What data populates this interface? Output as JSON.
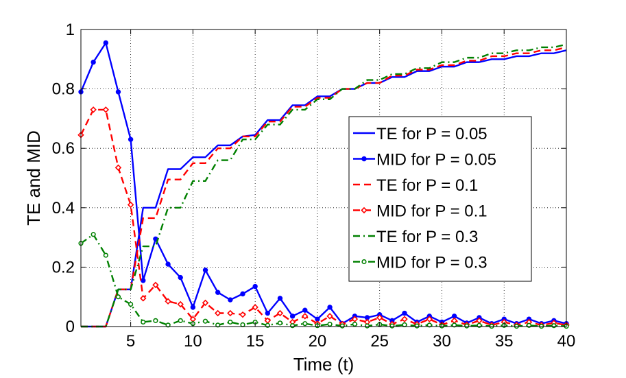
{
  "chart_data": {
    "type": "line",
    "xlabel": "Time (t)",
    "ylabel": "TE and MID",
    "xlim": [
      1,
      40
    ],
    "ylim": [
      0,
      1
    ],
    "xticks": [
      5,
      10,
      15,
      20,
      25,
      30,
      35,
      40
    ],
    "yticks": [
      0,
      0.2,
      0.4,
      0.6,
      0.8,
      1
    ],
    "xtick_labels": [
      "5",
      "10",
      "15",
      "20",
      "25",
      "30",
      "35",
      "40"
    ],
    "ytick_labels": [
      "0",
      "0.2",
      "0.4",
      "0.6",
      "0.8",
      "1"
    ],
    "grid": true,
    "legend_position": "center-right",
    "x": [
      1,
      2,
      3,
      4,
      5,
      6,
      7,
      8,
      9,
      10,
      11,
      12,
      13,
      14,
      15,
      16,
      17,
      18,
      19,
      20,
      21,
      22,
      23,
      24,
      25,
      26,
      27,
      28,
      29,
      30,
      31,
      32,
      33,
      34,
      35,
      36,
      37,
      38,
      39,
      40
    ],
    "series": [
      {
        "name": "TE for P = 0.05",
        "color": "#0000ff",
        "style": "solid",
        "marker": "none",
        "values": [
          0,
          0,
          0,
          0.125,
          0.125,
          0.4,
          0.4,
          0.53,
          0.53,
          0.57,
          0.57,
          0.61,
          0.61,
          0.64,
          0.645,
          0.695,
          0.695,
          0.745,
          0.745,
          0.775,
          0.775,
          0.8,
          0.8,
          0.82,
          0.82,
          0.84,
          0.84,
          0.86,
          0.86,
          0.875,
          0.875,
          0.89,
          0.89,
          0.9,
          0.9,
          0.91,
          0.91,
          0.92,
          0.92,
          0.93
        ]
      },
      {
        "name": "MID for P = 0.05",
        "color": "#0000ff",
        "style": "solid",
        "marker": "dot",
        "values": [
          0.79,
          0.89,
          0.955,
          0.79,
          0.63,
          0.155,
          0.295,
          0.21,
          0.165,
          0.065,
          0.19,
          0.115,
          0.09,
          0.11,
          0.135,
          0.045,
          0.095,
          0.035,
          0.055,
          0.025,
          0.065,
          0.01,
          0.035,
          0.03,
          0.04,
          0.02,
          0.045,
          0.015,
          0.035,
          0.015,
          0.035,
          0.012,
          0.03,
          0.01,
          0.025,
          0.01,
          0.025,
          0.01,
          0.02,
          0.01
        ]
      },
      {
        "name": "TE for P = 0.1",
        "color": "#ff0000",
        "style": "dashed",
        "marker": "none",
        "values": [
          0,
          0,
          0,
          0.125,
          0.125,
          0.365,
          0.365,
          0.495,
          0.495,
          0.55,
          0.55,
          0.6,
          0.6,
          0.64,
          0.64,
          0.69,
          0.69,
          0.74,
          0.74,
          0.77,
          0.77,
          0.8,
          0.8,
          0.82,
          0.82,
          0.845,
          0.845,
          0.865,
          0.865,
          0.88,
          0.88,
          0.895,
          0.895,
          0.91,
          0.91,
          0.92,
          0.92,
          0.93,
          0.93,
          0.94
        ]
      },
      {
        "name": "MID for P = 0.1",
        "color": "#ff0000",
        "style": "dashed",
        "marker": "diamond",
        "values": [
          0.645,
          0.73,
          0.73,
          0.535,
          0.41,
          0.095,
          0.14,
          0.085,
          0.075,
          0.025,
          0.08,
          0.045,
          0.045,
          0.04,
          0.065,
          0.02,
          0.045,
          0.015,
          0.035,
          0.01,
          0.035,
          0.008,
          0.025,
          0.015,
          0.03,
          0.008,
          0.025,
          0.008,
          0.025,
          0.006,
          0.02,
          0.006,
          0.02,
          0.005,
          0.015,
          0.005,
          0.015,
          0.005,
          0.012,
          0.005
        ]
      },
      {
        "name": "TE for P = 0.3",
        "color": "#008000",
        "style": "dashdot",
        "marker": "none",
        "values": [
          0,
          0,
          0,
          0.125,
          0.125,
          0.27,
          0.27,
          0.4,
          0.4,
          0.49,
          0.49,
          0.56,
          0.56,
          0.63,
          0.63,
          0.68,
          0.68,
          0.73,
          0.73,
          0.765,
          0.765,
          0.8,
          0.8,
          0.83,
          0.83,
          0.85,
          0.85,
          0.87,
          0.87,
          0.89,
          0.89,
          0.905,
          0.905,
          0.92,
          0.92,
          0.93,
          0.93,
          0.94,
          0.94,
          0.95
        ]
      },
      {
        "name": "MID for P = 0.3",
        "color": "#008000",
        "style": "dashdot",
        "marker": "circle",
        "values": [
          0.28,
          0.31,
          0.24,
          0.1,
          0.075,
          0.015,
          0.02,
          0.005,
          0.02,
          0.01,
          0.018,
          0.005,
          0.015,
          0.006,
          0.015,
          0.004,
          0.012,
          0.003,
          0.01,
          0.003,
          0.008,
          0.002,
          0.008,
          0.002,
          0.007,
          0.002,
          0.006,
          0.002,
          0.005,
          0.002,
          0.005,
          0.002,
          0.004,
          0.001,
          0.004,
          0.001,
          0.004,
          0.001,
          0.003,
          0.001
        ]
      }
    ]
  }
}
